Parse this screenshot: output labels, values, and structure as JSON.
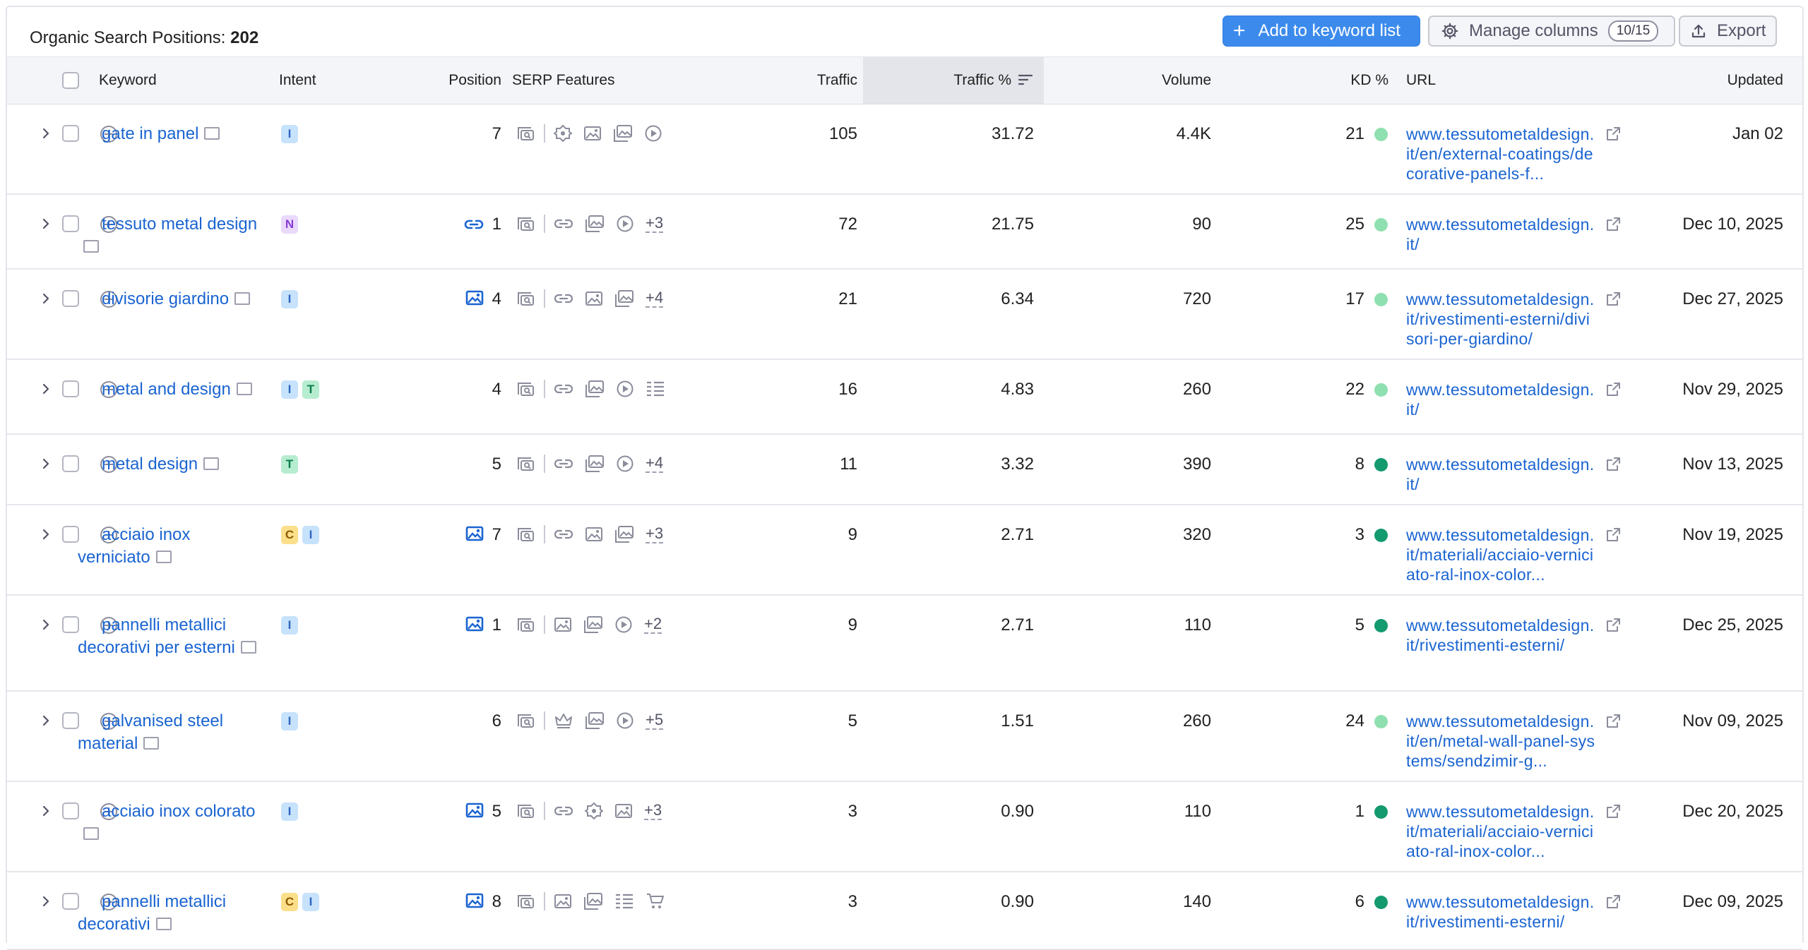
{
  "header": {
    "title_label": "Organic Search Positions:",
    "title_count": "202",
    "add_button": "Add to keyword list",
    "manage_columns_button": "Manage columns",
    "columns_badge": "10/15",
    "export_button": "Export"
  },
  "columns": {
    "keyword": "Keyword",
    "intent": "Intent",
    "position": "Position",
    "serp": "SERP Features",
    "traffic": "Traffic",
    "traffic_pct": "Traffic %",
    "volume": "Volume",
    "kd": "KD %",
    "url": "URL",
    "updated": "Updated"
  },
  "colors": {
    "accent": "#3c8bec",
    "link": "#1a64d1",
    "kd_light": "#8fe0b0",
    "kd_dark": "#139a6e"
  },
  "rows": [
    {
      "keyword": "gate in panel",
      "intent": [
        "I"
      ],
      "position": "7",
      "position_icon": "",
      "serp": [
        "image-pack-icon",
        "knowledge-panel-icon",
        "image-icon",
        "image-gallery-icon",
        "video-icon"
      ],
      "serp_more": "",
      "traffic": "105",
      "traffic_pct": "31.72",
      "volume": "4.4K",
      "kd": "21",
      "kd_level": "light",
      "url": "www.tessutometaldesign.it/en/external-coatings/decorative-panels-f...",
      "updated": "Jan 02"
    },
    {
      "keyword": "tessuto metal design",
      "intent": [
        "N"
      ],
      "position": "1",
      "position_icon": "sitelinks-icon",
      "serp": [
        "image-pack-icon",
        "link-icon",
        "image-gallery-icon",
        "video-icon"
      ],
      "serp_more": "+3",
      "traffic": "72",
      "traffic_pct": "21.75",
      "volume": "90",
      "kd": "25",
      "kd_level": "light",
      "url": "www.tessutometaldesign.it/",
      "updated": "Dec 10, 2025"
    },
    {
      "keyword": "divisorie giardino",
      "intent": [
        "I"
      ],
      "position": "4",
      "position_icon": "image-icon",
      "serp": [
        "image-pack-icon",
        "link-icon",
        "image-icon",
        "image-gallery-icon"
      ],
      "serp_more": "+4",
      "traffic": "21",
      "traffic_pct": "6.34",
      "volume": "720",
      "kd": "17",
      "kd_level": "light",
      "url": "www.tessutometaldesign.it/rivestimenti-esterni/divisori-per-giardino/",
      "updated": "Dec 27, 2025"
    },
    {
      "keyword": "metal and design",
      "intent": [
        "I",
        "T"
      ],
      "position": "4",
      "position_icon": "",
      "serp": [
        "image-pack-icon",
        "link-icon",
        "image-gallery-icon",
        "video-icon",
        "list-icon"
      ],
      "serp_more": "",
      "traffic": "16",
      "traffic_pct": "4.83",
      "volume": "260",
      "kd": "22",
      "kd_level": "light",
      "url": "www.tessutometaldesign.it/",
      "updated": "Nov 29, 2025"
    },
    {
      "keyword": "metal design",
      "intent": [
        "T"
      ],
      "position": "5",
      "position_icon": "",
      "serp": [
        "image-pack-icon",
        "link-icon",
        "image-gallery-icon",
        "video-icon"
      ],
      "serp_more": "+4",
      "traffic": "11",
      "traffic_pct": "3.32",
      "volume": "390",
      "kd": "8",
      "kd_level": "dark",
      "url": "www.tessutometaldesign.it/",
      "updated": "Nov 13, 2025"
    },
    {
      "keyword": "acciaio inox verniciato",
      "intent": [
        "C",
        "I"
      ],
      "position": "7",
      "position_icon": "image-icon",
      "serp": [
        "image-pack-icon",
        "link-icon",
        "image-icon",
        "image-gallery-icon"
      ],
      "serp_more": "+3",
      "traffic": "9",
      "traffic_pct": "2.71",
      "volume": "320",
      "kd": "3",
      "kd_level": "dark",
      "url": "www.tessutometaldesign.it/materiali/acciaio-verniciato-ral-inox-color...",
      "updated": "Nov 19, 2025"
    },
    {
      "keyword": "pannelli metallici decorativi per esterni",
      "intent": [
        "I"
      ],
      "position": "1",
      "position_icon": "image-icon",
      "serp": [
        "image-pack-icon",
        "image-icon",
        "image-gallery-icon",
        "video-icon"
      ],
      "serp_more": "+2",
      "traffic": "9",
      "traffic_pct": "2.71",
      "volume": "110",
      "kd": "5",
      "kd_level": "dark",
      "url": "www.tessutometaldesign.it/rivestimenti-esterni/",
      "updated": "Dec 25, 2025"
    },
    {
      "keyword": "galvanised steel material",
      "intent": [
        "I"
      ],
      "position": "6",
      "position_icon": "",
      "serp": [
        "image-pack-icon",
        "crown-icon",
        "image-gallery-icon",
        "video-icon"
      ],
      "serp_more": "+5",
      "traffic": "5",
      "traffic_pct": "1.51",
      "volume": "260",
      "kd": "24",
      "kd_level": "light",
      "url": "www.tessutometaldesign.it/en/metal-wall-panel-systems/sendzimir-g...",
      "updated": "Nov 09, 2025"
    },
    {
      "keyword": "acciaio inox colorato",
      "intent": [
        "I"
      ],
      "position": "5",
      "position_icon": "image-icon",
      "serp": [
        "image-pack-icon",
        "link-icon",
        "knowledge-panel-icon",
        "image-icon"
      ],
      "serp_more": "+3",
      "traffic": "3",
      "traffic_pct": "0.90",
      "volume": "110",
      "kd": "1",
      "kd_level": "dark",
      "url": "www.tessutometaldesign.it/materiali/acciaio-verniciato-ral-inox-color...",
      "updated": "Dec 20, 2025"
    },
    {
      "keyword": "pannelli metallici decorativi",
      "intent": [
        "C",
        "I"
      ],
      "position": "8",
      "position_icon": "image-icon",
      "serp": [
        "image-pack-icon",
        "image-icon",
        "image-gallery-icon",
        "list-icon",
        "shopping-icon"
      ],
      "serp_more": "",
      "traffic": "3",
      "traffic_pct": "0.90",
      "volume": "140",
      "kd": "6",
      "kd_level": "dark",
      "url": "www.tessutometaldesign.it/rivestimenti-esterni/",
      "updated": "Dec 09, 2025"
    }
  ]
}
